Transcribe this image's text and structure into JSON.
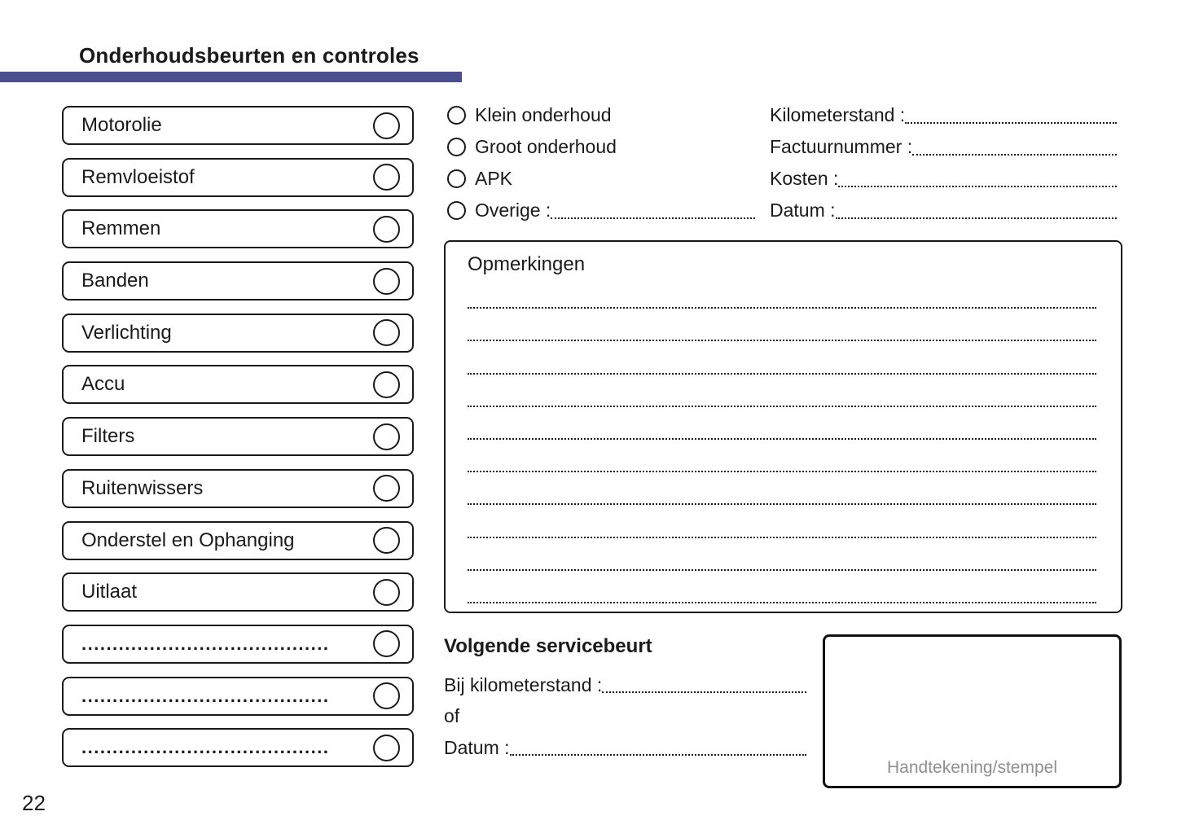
{
  "page": {
    "number": "22"
  },
  "header": {
    "title": "Onderhoudsbeurten en controles",
    "accent_color": "#4A4F8D"
  },
  "checklist": {
    "items": [
      {
        "label": "Motorolie"
      },
      {
        "label": "Remvloeistof"
      },
      {
        "label": "Remmen"
      },
      {
        "label": "Banden"
      },
      {
        "label": "Verlichting"
      },
      {
        "label": "Accu"
      },
      {
        "label": "Filters"
      },
      {
        "label": "Ruitenwissers"
      },
      {
        "label": "Onderstel en Ophanging"
      },
      {
        "label": "Uitlaat"
      },
      {
        "label": "........................................"
      },
      {
        "label": "........................................"
      },
      {
        "label": "........................................"
      }
    ]
  },
  "service_types": {
    "options": [
      {
        "label": "Klein onderhoud"
      },
      {
        "label": "Groot onderhoud"
      },
      {
        "label": "APK"
      },
      {
        "label": "Overige :"
      }
    ]
  },
  "invoice_fields": {
    "fields": [
      {
        "label": "Kilometerstand :"
      },
      {
        "label": "Factuurnummer :"
      },
      {
        "label": "Kosten :"
      },
      {
        "label": "Datum :"
      }
    ]
  },
  "remarks": {
    "title": "Opmerkingen",
    "line_count": 10
  },
  "next_service": {
    "title": "Volgende servicebeurt",
    "mileage_label": "Bij kilometerstand :",
    "or_label": "of",
    "date_label": "Datum :"
  },
  "signature": {
    "label": "Handtekening/stempel",
    "label_color": "#8F8F8F"
  }
}
